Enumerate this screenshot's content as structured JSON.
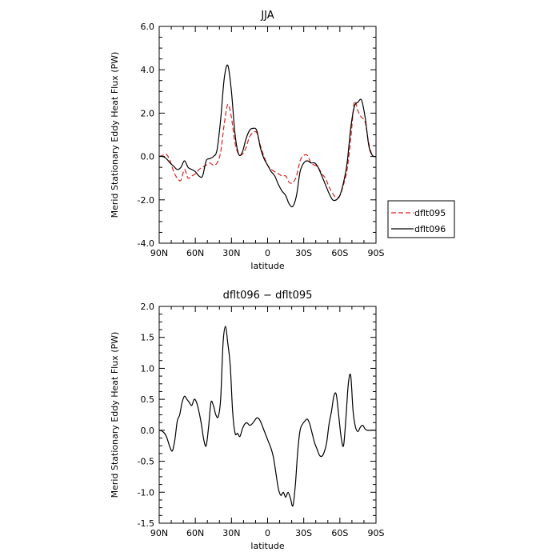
{
  "chart_data": [
    {
      "type": "line",
      "title": "JJA",
      "xlabel": "latitude",
      "ylabel": "Merid Stationary Eddy Heat Flux (PW)",
      "xlim": [
        90,
        -90
      ],
      "ylim": [
        -4,
        6
      ],
      "x_ticks": [
        {
          "value": 90,
          "label": "90N"
        },
        {
          "value": 60,
          "label": "60N"
        },
        {
          "value": 30,
          "label": "30N"
        },
        {
          "value": 0,
          "label": "0"
        },
        {
          "value": -30,
          "label": "30S"
        },
        {
          "value": -60,
          "label": "60S"
        },
        {
          "value": -90,
          "label": "90S"
        }
      ],
      "y_ticks": [
        {
          "value": -4,
          "label": "-4.0"
        },
        {
          "value": -2,
          "label": "-2.0"
        },
        {
          "value": 0,
          "label": "0.0"
        },
        {
          "value": 2,
          "label": "2.0"
        },
        {
          "value": 4,
          "label": "4.0"
        },
        {
          "value": 6,
          "label": "6.0"
        }
      ],
      "grid": false,
      "legend_position": "right",
      "series": [
        {
          "name": "dflt095",
          "color": "#e02020",
          "dash": true,
          "x": [
            90,
            87,
            84,
            81,
            78,
            75,
            72,
            69,
            66,
            63,
            60,
            57,
            54,
            51,
            48,
            45,
            42,
            39,
            36,
            33,
            30,
            27,
            24,
            21,
            18,
            15,
            12,
            9,
            6,
            3,
            0,
            -3,
            -6,
            -9,
            -12,
            -15,
            -18,
            -21,
            -24,
            -27,
            -30,
            -33,
            -36,
            -39,
            -42,
            -45,
            -48,
            -51,
            -54,
            -57,
            -60,
            -63,
            -66,
            -69,
            -72,
            -75,
            -78,
            -81,
            -84,
            -87,
            -90
          ],
          "y": [
            0,
            0.05,
            0.1,
            -0.2,
            -0.7,
            -1.0,
            -1.1,
            -0.6,
            -1.0,
            -0.9,
            -0.8,
            -0.6,
            -0.5,
            -0.4,
            -0.3,
            -0.4,
            -0.3,
            0.2,
            1.5,
            2.4,
            1.8,
            0.6,
            0.1,
            0.1,
            0.4,
            0.9,
            1.1,
            1.1,
            0.5,
            0,
            -0.4,
            -0.6,
            -0.7,
            -0.8,
            -0.9,
            -0.9,
            -1.2,
            -1.2,
            -0.9,
            -0.2,
            0.05,
            0.05,
            -0.3,
            -0.4,
            -0.5,
            -0.8,
            -1.0,
            -1.4,
            -1.7,
            -1.9,
            -1.8,
            -1.3,
            -0.6,
            0.8,
            2.5,
            2.1,
            1.8,
            1.6,
            0.6,
            0.05,
            0
          ]
        },
        {
          "name": "dflt096",
          "color": "#000000",
          "dash": false,
          "x": [
            90,
            87,
            84,
            81,
            78,
            75,
            72,
            69,
            66,
            63,
            60,
            57,
            54,
            51,
            48,
            45,
            42,
            39,
            36,
            33,
            30,
            27,
            24,
            21,
            18,
            15,
            12,
            9,
            6,
            3,
            0,
            -3,
            -6,
            -9,
            -12,
            -15,
            -18,
            -21,
            -24,
            -27,
            -30,
            -33,
            -36,
            -39,
            -42,
            -45,
            -48,
            -51,
            -54,
            -57,
            -60,
            -63,
            -66,
            -69,
            -72,
            -75,
            -78,
            -81,
            -84,
            -87,
            -90
          ],
          "y": [
            0,
            0,
            -0.1,
            -0.3,
            -0.45,
            -0.6,
            -0.5,
            -0.2,
            -0.5,
            -0.6,
            -0.7,
            -0.9,
            -0.9,
            -0.2,
            -0.1,
            0,
            0.3,
            1.7,
            3.6,
            4.2,
            3.0,
            1.0,
            0.1,
            0.2,
            0.8,
            1.2,
            1.3,
            1.2,
            0.4,
            -0.1,
            -0.4,
            -0.7,
            -0.9,
            -1.3,
            -1.6,
            -1.8,
            -2.2,
            -2.3,
            -1.8,
            -0.7,
            -0.3,
            -0.2,
            -0.3,
            -0.3,
            -0.5,
            -0.9,
            -1.3,
            -1.7,
            -2.0,
            -2.0,
            -1.8,
            -1.2,
            -0.3,
            1.3,
            2.3,
            2.5,
            2.6,
            1.8,
            0.5,
            0.05,
            0
          ]
        }
      ]
    },
    {
      "type": "line",
      "title": "dflt096 − dflt095",
      "xlabel": "latitude",
      "ylabel": "Merid Stationary Eddy Heat Flux (PW)",
      "xlim": [
        90,
        -90
      ],
      "ylim": [
        -1.5,
        2.0
      ],
      "x_ticks": [
        {
          "value": 90,
          "label": "90N"
        },
        {
          "value": 60,
          "label": "60N"
        },
        {
          "value": 30,
          "label": "30N"
        },
        {
          "value": 0,
          "label": "0"
        },
        {
          "value": -30,
          "label": "30S"
        },
        {
          "value": -60,
          "label": "60S"
        },
        {
          "value": -90,
          "label": "90S"
        }
      ],
      "y_ticks": [
        {
          "value": -1.5,
          "label": "-1.5"
        },
        {
          "value": -1.0,
          "label": "-1.0"
        },
        {
          "value": -0.5,
          "label": "-0.5"
        },
        {
          "value": 0.0,
          "label": "0.0"
        },
        {
          "value": 0.5,
          "label": "0.5"
        },
        {
          "value": 1.0,
          "label": "1.0"
        },
        {
          "value": 1.5,
          "label": "1.5"
        },
        {
          "value": 2.0,
          "label": "2.0"
        }
      ],
      "grid": false,
      "series": [
        {
          "color": "#000000",
          "dash": false,
          "x": [
            90,
            87,
            84,
            81,
            79,
            77,
            75,
            73,
            71,
            69,
            67,
            65,
            63,
            61,
            59,
            57,
            55,
            53,
            51,
            49,
            47,
            45,
            43,
            41,
            39,
            37,
            35,
            33,
            31,
            29,
            27,
            25,
            23,
            21,
            19,
            17,
            15,
            13,
            11,
            9,
            7,
            5,
            3,
            1,
            -1,
            -3,
            -5,
            -7,
            -9,
            -11,
            -13,
            -15,
            -17,
            -19,
            -21,
            -23,
            -25,
            -27,
            -29,
            -31,
            -33,
            -35,
            -37,
            -39,
            -41,
            -43,
            -45,
            -47,
            -49,
            -51,
            -53,
            -55,
            -57,
            -59,
            -61,
            -63,
            -65,
            -67,
            -69,
            -71,
            -73,
            -75,
            -77,
            -79,
            -81,
            -83,
            -85,
            -87,
            -90
          ],
          "y": [
            0,
            -0.02,
            -0.1,
            -0.28,
            -0.33,
            -0.15,
            0.15,
            0.25,
            0.45,
            0.55,
            0.5,
            0.45,
            0.4,
            0.5,
            0.45,
            0.3,
            0.1,
            -0.15,
            -0.25,
            0.05,
            0.45,
            0.4,
            0.25,
            0.22,
            0.5,
            1.4,
            1.68,
            1.4,
            1.05,
            0.3,
            -0.05,
            -0.05,
            -0.1,
            0.02,
            0.1,
            0.12,
            0.08,
            0.1,
            0.15,
            0.2,
            0.18,
            0.1,
            0,
            -0.1,
            -0.2,
            -0.3,
            -0.45,
            -0.7,
            -0.95,
            -1.05,
            -1.0,
            -1.08,
            -1.0,
            -1.1,
            -1.22,
            -0.9,
            -0.35,
            0,
            0.1,
            0.15,
            0.18,
            0.1,
            -0.05,
            -0.2,
            -0.3,
            -0.4,
            -0.42,
            -0.35,
            -0.2,
            0.1,
            0.3,
            0.55,
            0.58,
            0.25,
            -0.1,
            -0.25,
            0.2,
            0.75,
            0.88,
            0.3,
            0.05,
            -0.02,
            0.05,
            0.08,
            0.02,
            0.0,
            0.0,
            0.0,
            0.0
          ]
        }
      ]
    }
  ]
}
